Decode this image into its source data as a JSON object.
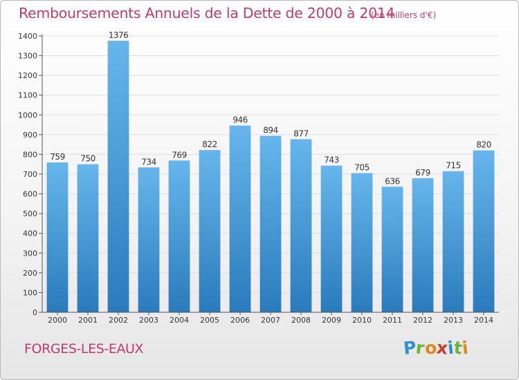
{
  "title": "Remboursements Annuels de la Dette de 2000 à 2014",
  "subtitle": "(en milliers d'€)",
  "commune": "FORGES-LES-EAUX",
  "logo": {
    "letters": [
      "P",
      "r",
      "o",
      "x",
      "i",
      "t",
      "i"
    ],
    "colors": [
      "#2f8fd0",
      "#6fb33a",
      "#e08a1e",
      "#d23c2c",
      "#2f8fd0",
      "#6fb33a",
      "#e08a1e"
    ]
  },
  "colors": {
    "bar_top": "#66b6ec",
    "bar_bottom": "#2a7bbc",
    "text_accent": "#c03a6f",
    "grid": "#dddddd"
  },
  "chart_data": {
    "type": "bar",
    "categories": [
      "2000",
      "2001",
      "2002",
      "2003",
      "2004",
      "2005",
      "2006",
      "2007",
      "2008",
      "2009",
      "2010",
      "2011",
      "2012",
      "2013",
      "2014"
    ],
    "values": [
      759,
      750,
      1376,
      734,
      769,
      822,
      946,
      894,
      877,
      743,
      705,
      636,
      679,
      715,
      820
    ],
    "ylim": [
      0,
      1400
    ],
    "yticks": [
      0,
      100,
      200,
      300,
      400,
      500,
      600,
      700,
      800,
      900,
      1000,
      1100,
      1200,
      1300,
      1400
    ],
    "grid": true,
    "data_labels": true
  }
}
